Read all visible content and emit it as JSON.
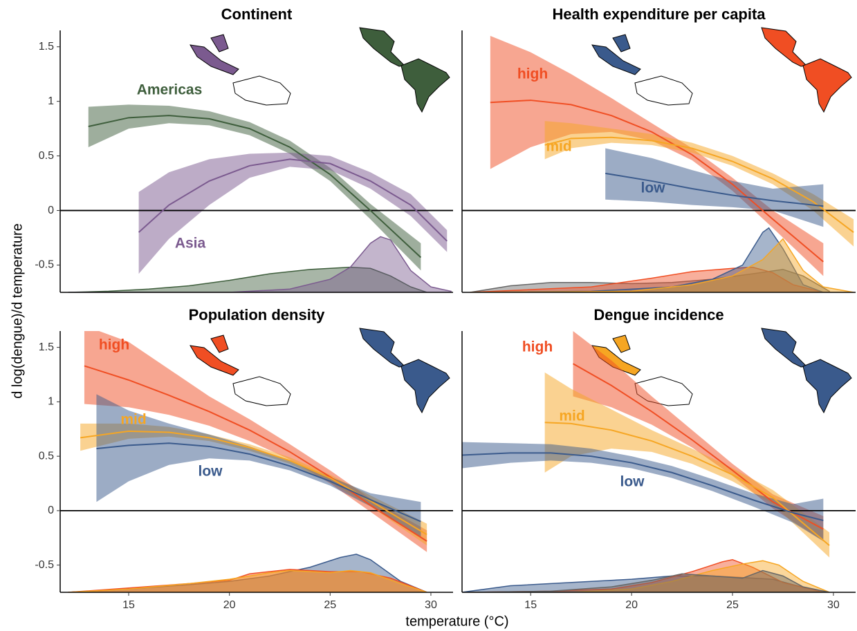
{
  "xlabel": "temperature (°C)",
  "ylabel": "d log(dengue)/d temperature",
  "chart_data": [
    {
      "type": "line",
      "title": "Continent",
      "xlim": [
        11.6,
        31.1
      ],
      "ylim": [
        -0.75,
        1.65
      ],
      "yticks": [
        -0.5,
        0,
        0.5,
        1,
        1.5
      ],
      "hline": 0,
      "series": [
        {
          "name": "Americas",
          "color": "#3e5e3c",
          "x": [
            13,
            15,
            17,
            19,
            21,
            23,
            25,
            27,
            29.5
          ],
          "values": [
            0.77,
            0.85,
            0.87,
            0.84,
            0.75,
            0.58,
            0.33,
            0.0,
            -0.43
          ],
          "lower": [
            0.58,
            0.75,
            0.8,
            0.78,
            0.69,
            0.52,
            0.27,
            -0.08,
            -0.55
          ],
          "upper": [
            0.95,
            0.97,
            0.96,
            0.91,
            0.81,
            0.64,
            0.39,
            0.06,
            -0.3
          ]
        },
        {
          "name": "Asia",
          "color": "#7b5a8f",
          "x": [
            15.5,
            17,
            19,
            21,
            23,
            25,
            27,
            29,
            30.8
          ],
          "values": [
            -0.2,
            0.05,
            0.27,
            0.41,
            0.47,
            0.43,
            0.27,
            0.05,
            -0.28
          ],
          "lower": [
            -0.58,
            -0.26,
            0.05,
            0.3,
            0.4,
            0.37,
            0.2,
            -0.05,
            -0.38
          ],
          "upper": [
            0.17,
            0.35,
            0.47,
            0.52,
            0.53,
            0.5,
            0.35,
            0.15,
            -0.18
          ]
        }
      ],
      "density": [
        {
          "color": "#3e5e3c",
          "x": [
            12,
            14,
            16,
            18,
            20,
            22,
            24,
            26,
            27,
            28,
            29,
            29.8
          ],
          "values": [
            -0.75,
            -0.74,
            -0.72,
            -0.69,
            -0.64,
            -0.58,
            -0.54,
            -0.52,
            -0.53,
            -0.6,
            -0.7,
            -0.75
          ]
        },
        {
          "color": "#7b5a8f",
          "x": [
            12,
            20,
            23,
            25,
            26,
            27,
            27.5,
            28,
            29,
            30,
            31
          ],
          "values": [
            -0.75,
            -0.75,
            -0.72,
            -0.63,
            -0.52,
            -0.3,
            -0.24,
            -0.27,
            -0.55,
            -0.7,
            -0.74
          ]
        }
      ]
    },
    {
      "type": "line",
      "title": "Health expenditure per capita",
      "xlim": [
        11.6,
        31.1
      ],
      "ylim": [
        -0.75,
        1.65
      ],
      "hline": 0,
      "series": [
        {
          "name": "high",
          "color": "#f04e23",
          "x": [
            13,
            15,
            17,
            19,
            21,
            23,
            25,
            27,
            29.5
          ],
          "values": [
            0.99,
            1.01,
            0.97,
            0.87,
            0.72,
            0.51,
            0.24,
            -0.08,
            -0.47
          ],
          "lower": [
            0.38,
            0.58,
            0.7,
            0.72,
            0.64,
            0.46,
            0.18,
            -0.16,
            -0.6
          ],
          "upper": [
            1.6,
            1.45,
            1.25,
            1.03,
            0.8,
            0.57,
            0.3,
            0.0,
            -0.3
          ]
        },
        {
          "name": "mid",
          "color": "#f6a623",
          "x": [
            15.7,
            17,
            19,
            21,
            23,
            25,
            27,
            29,
            31
          ],
          "values": [
            0.6,
            0.66,
            0.67,
            0.64,
            0.57,
            0.45,
            0.29,
            0.08,
            -0.2
          ],
          "lower": [
            0.47,
            0.57,
            0.62,
            0.6,
            0.53,
            0.41,
            0.24,
            0.0,
            -0.33
          ],
          "upper": [
            0.82,
            0.8,
            0.75,
            0.7,
            0.62,
            0.5,
            0.34,
            0.15,
            -0.08
          ]
        },
        {
          "name": "low",
          "color": "#3a5a8c",
          "x": [
            18.7,
            21,
            23,
            25,
            27,
            29.5
          ],
          "values": [
            0.34,
            0.27,
            0.2,
            0.14,
            0.09,
            0.04
          ],
          "lower": [
            0.1,
            0.08,
            0.05,
            0.03,
            0.0,
            -0.15
          ],
          "upper": [
            0.57,
            0.48,
            0.37,
            0.27,
            0.2,
            0.24
          ]
        }
      ],
      "density": [
        {
          "color": "#666666",
          "x": [
            12,
            14,
            16,
            18,
            20,
            22,
            24,
            26,
            27.5,
            28.5,
            29.8
          ],
          "values": [
            -0.75,
            -0.69,
            -0.66,
            -0.66,
            -0.67,
            -0.66,
            -0.63,
            -0.58,
            -0.54,
            -0.6,
            -0.74
          ]
        },
        {
          "color": "#f04e23",
          "x": [
            12,
            18,
            21,
            23,
            25,
            26,
            27,
            28,
            29.5
          ],
          "values": [
            -0.75,
            -0.7,
            -0.62,
            -0.56,
            -0.53,
            -0.52,
            -0.57,
            -0.68,
            -0.75
          ]
        },
        {
          "color": "#3a5a8c",
          "x": [
            12,
            18,
            22,
            24,
            25.5,
            26.5,
            26.8,
            27.5,
            28.5,
            29.5
          ],
          "values": [
            -0.75,
            -0.74,
            -0.7,
            -0.63,
            -0.5,
            -0.2,
            -0.16,
            -0.35,
            -0.68,
            -0.75
          ]
        },
        {
          "color": "#f6a623",
          "x": [
            12,
            20,
            23,
            25,
            26.5,
            27.5,
            28.5,
            29.5,
            31
          ],
          "values": [
            -0.75,
            -0.74,
            -0.68,
            -0.6,
            -0.45,
            -0.26,
            -0.55,
            -0.7,
            -0.75
          ]
        }
      ]
    },
    {
      "type": "line",
      "title": "Population density",
      "xlim": [
        11.6,
        31.1
      ],
      "ylim": [
        -0.75,
        1.65
      ],
      "yticks": [
        -0.5,
        0,
        0.5,
        1,
        1.5
      ],
      "xticks": [
        15,
        20,
        25,
        30
      ],
      "hline": 0,
      "series": [
        {
          "name": "high",
          "color": "#f04e23",
          "x": [
            12.8,
            15,
            17,
            19,
            21,
            23,
            25,
            27,
            29.8
          ],
          "values": [
            1.33,
            1.2,
            1.06,
            0.91,
            0.74,
            0.54,
            0.31,
            0.05,
            -0.28
          ],
          "lower": [
            0.98,
            0.95,
            0.88,
            0.78,
            0.64,
            0.47,
            0.25,
            -0.01,
            -0.38
          ],
          "upper": [
            1.7,
            1.55,
            1.3,
            1.05,
            0.84,
            0.61,
            0.37,
            0.11,
            -0.18
          ]
        },
        {
          "name": "mid",
          "color": "#f6a623",
          "x": [
            12.6,
            15,
            17,
            19,
            21,
            23,
            25,
            27,
            29.8
          ],
          "values": [
            0.67,
            0.73,
            0.72,
            0.67,
            0.58,
            0.46,
            0.3,
            0.09,
            -0.22
          ],
          "lower": [
            0.55,
            0.66,
            0.68,
            0.64,
            0.55,
            0.43,
            0.26,
            0.04,
            -0.32
          ],
          "upper": [
            0.8,
            0.8,
            0.77,
            0.7,
            0.61,
            0.49,
            0.33,
            0.14,
            -0.12
          ]
        },
        {
          "name": "low",
          "color": "#3a5a8c",
          "x": [
            13.4,
            15,
            17,
            19,
            21,
            23,
            25,
            27,
            29.5
          ],
          "values": [
            0.57,
            0.6,
            0.62,
            0.59,
            0.52,
            0.41,
            0.27,
            0.1,
            -0.1
          ],
          "lower": [
            0.08,
            0.27,
            0.42,
            0.48,
            0.46,
            0.37,
            0.23,
            0.04,
            -0.25
          ],
          "upper": [
            1.07,
            0.92,
            0.8,
            0.7,
            0.59,
            0.46,
            0.31,
            0.16,
            0.08
          ]
        }
      ],
      "density": [
        {
          "color": "#3a5a8c",
          "x": [
            12,
            15,
            18,
            20,
            22,
            24,
            25.5,
            26.3,
            27,
            28.5,
            29.8
          ],
          "values": [
            -0.75,
            -0.72,
            -0.68,
            -0.65,
            -0.6,
            -0.52,
            -0.43,
            -0.4,
            -0.45,
            -0.65,
            -0.75
          ]
        },
        {
          "color": "#f04e23",
          "x": [
            12,
            15,
            18,
            20,
            21,
            23,
            25,
            26.5,
            28,
            29.8
          ],
          "values": [
            -0.75,
            -0.71,
            -0.67,
            -0.64,
            -0.58,
            -0.54,
            -0.56,
            -0.56,
            -0.62,
            -0.75
          ]
        },
        {
          "color": "#f6a623",
          "x": [
            12,
            15,
            18,
            20,
            22,
            23,
            25,
            26,
            27,
            28.5,
            29.8
          ],
          "values": [
            -0.75,
            -0.72,
            -0.67,
            -0.63,
            -0.57,
            -0.55,
            -0.57,
            -0.55,
            -0.57,
            -0.67,
            -0.75
          ]
        }
      ]
    },
    {
      "type": "line",
      "title": "Dengue incidence",
      "xlim": [
        11.6,
        31.1
      ],
      "ylim": [
        -0.75,
        1.65
      ],
      "xticks": [
        15,
        20,
        25,
        30
      ],
      "hline": 0,
      "series": [
        {
          "name": "high",
          "color": "#f04e23",
          "x": [
            17.1,
            19,
            21,
            23,
            25,
            27,
            29.5
          ],
          "values": [
            1.35,
            1.15,
            0.91,
            0.65,
            0.37,
            0.08,
            -0.17
          ],
          "lower": [
            1.05,
            0.95,
            0.79,
            0.58,
            0.32,
            0.02,
            -0.28
          ],
          "upper": [
            1.65,
            1.38,
            1.05,
            0.74,
            0.43,
            0.15,
            -0.05
          ]
        },
        {
          "name": "mid",
          "color": "#f6a623",
          "x": [
            15.7,
            17,
            19,
            21,
            23,
            25,
            27,
            29.8
          ],
          "values": [
            0.81,
            0.8,
            0.74,
            0.64,
            0.5,
            0.33,
            0.12,
            -0.32
          ],
          "lower": [
            0.35,
            0.5,
            0.57,
            0.54,
            0.43,
            0.27,
            0.06,
            -0.43
          ],
          "upper": [
            1.27,
            1.12,
            0.93,
            0.74,
            0.57,
            0.39,
            0.19,
            -0.2
          ]
        },
        {
          "name": "low",
          "color": "#3a5a8c",
          "x": [
            11.6,
            14,
            16,
            18,
            20,
            22,
            24,
            26,
            28,
            29.5
          ],
          "values": [
            0.51,
            0.53,
            0.53,
            0.5,
            0.44,
            0.35,
            0.23,
            0.1,
            -0.02,
            -0.09
          ],
          "lower": [
            0.39,
            0.44,
            0.46,
            0.44,
            0.39,
            0.3,
            0.18,
            0.04,
            -0.11,
            -0.28
          ],
          "upper": [
            0.63,
            0.62,
            0.61,
            0.57,
            0.5,
            0.41,
            0.29,
            0.16,
            0.06,
            0.11
          ]
        }
      ],
      "density": [
        {
          "color": "#3a5a8c",
          "x": [
            11.6,
            12,
            14,
            16,
            18,
            20,
            22,
            24,
            26,
            27,
            28,
            29.5
          ],
          "values": [
            -0.75,
            -0.74,
            -0.69,
            -0.67,
            -0.65,
            -0.63,
            -0.6,
            -0.6,
            -0.62,
            -0.63,
            -0.68,
            -0.75
          ]
        },
        {
          "color": "#f04e23",
          "x": [
            12,
            16,
            19,
            21,
            23,
            24.5,
            25,
            26,
            27.5,
            29.5
          ],
          "values": [
            -0.75,
            -0.74,
            -0.72,
            -0.66,
            -0.56,
            -0.47,
            -0.45,
            -0.52,
            -0.66,
            -0.75
          ]
        },
        {
          "color": "#f6a623",
          "x": [
            12,
            17,
            20,
            22,
            24,
            25.5,
            26.5,
            27.3,
            28.5,
            29.8
          ],
          "values": [
            -0.75,
            -0.75,
            -0.72,
            -0.65,
            -0.55,
            -0.49,
            -0.46,
            -0.5,
            -0.65,
            -0.75
          ]
        },
        {
          "color": "#666666",
          "x": [
            12,
            16,
            19,
            21,
            22.5,
            24,
            25.5,
            26.5,
            27.5,
            28.5,
            29.8
          ],
          "values": [
            -0.75,
            -0.74,
            -0.7,
            -0.64,
            -0.58,
            -0.6,
            -0.62,
            -0.55,
            -0.6,
            -0.7,
            -0.75
          ]
        }
      ]
    }
  ]
}
